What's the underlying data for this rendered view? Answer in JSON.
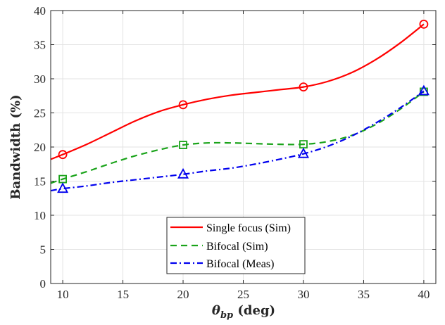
{
  "chart_data": {
    "type": "line",
    "title": "",
    "xlabel": "θ",
    "xlabel_sub": "bp",
    "xlabel_unit": " (deg)",
    "ylabel": "Bandwidth (%)",
    "xlim": [
      9,
      41
    ],
    "ylim": [
      0,
      40
    ],
    "x_ticks": [
      10,
      15,
      20,
      25,
      30,
      35,
      40
    ],
    "y_ticks": [
      0,
      5,
      10,
      15,
      20,
      25,
      30,
      35,
      40
    ],
    "grid": true,
    "legend_position": "bottom-center",
    "series": [
      {
        "name": "Single focus (Sim)",
        "color": "#ff0000",
        "line_style": "solid",
        "marker": "circle",
        "x": [
          10,
          20,
          30,
          40
        ],
        "values": [
          18.9,
          26.2,
          28.8,
          38.0
        ],
        "curve_x": [
          9,
          10,
          12,
          14,
          16,
          18,
          20,
          22,
          24,
          26,
          28,
          30,
          32,
          34,
          36,
          38,
          40
        ],
        "curve_y": [
          18.2,
          18.9,
          20.4,
          22.1,
          23.8,
          25.2,
          26.2,
          27.0,
          27.6,
          28.0,
          28.4,
          28.8,
          29.6,
          30.9,
          32.8,
          35.2,
          38.0
        ]
      },
      {
        "name": "Bifocal (Sim)",
        "color": "#1aa31a",
        "line_style": "dashed",
        "marker": "square",
        "x": [
          10,
          20,
          30,
          40
        ],
        "values": [
          15.3,
          20.3,
          20.4,
          28.1
        ],
        "curve_x": [
          9,
          10,
          12,
          14,
          16,
          18,
          20,
          22,
          24,
          26,
          28,
          30,
          32,
          34,
          36,
          38,
          40
        ],
        "curve_y": [
          14.7,
          15.3,
          16.4,
          17.6,
          18.7,
          19.6,
          20.3,
          20.6,
          20.6,
          20.5,
          20.4,
          20.4,
          20.8,
          21.7,
          23.3,
          25.5,
          28.1
        ]
      },
      {
        "name": "Bifocal (Meas)",
        "color": "#0000ee",
        "line_style": "dashdot",
        "marker": "triangle",
        "x": [
          10,
          20,
          30,
          40
        ],
        "values": [
          13.9,
          16.0,
          19.0,
          28.2
        ],
        "curve_x": [
          9,
          10,
          12,
          14,
          16,
          18,
          20,
          22,
          24,
          26,
          28,
          30,
          32,
          34,
          36,
          38,
          40
        ],
        "curve_y": [
          13.6,
          13.9,
          14.3,
          14.8,
          15.2,
          15.6,
          16.0,
          16.5,
          16.9,
          17.5,
          18.2,
          19.0,
          20.1,
          21.6,
          23.5,
          25.7,
          28.2
        ]
      }
    ]
  }
}
